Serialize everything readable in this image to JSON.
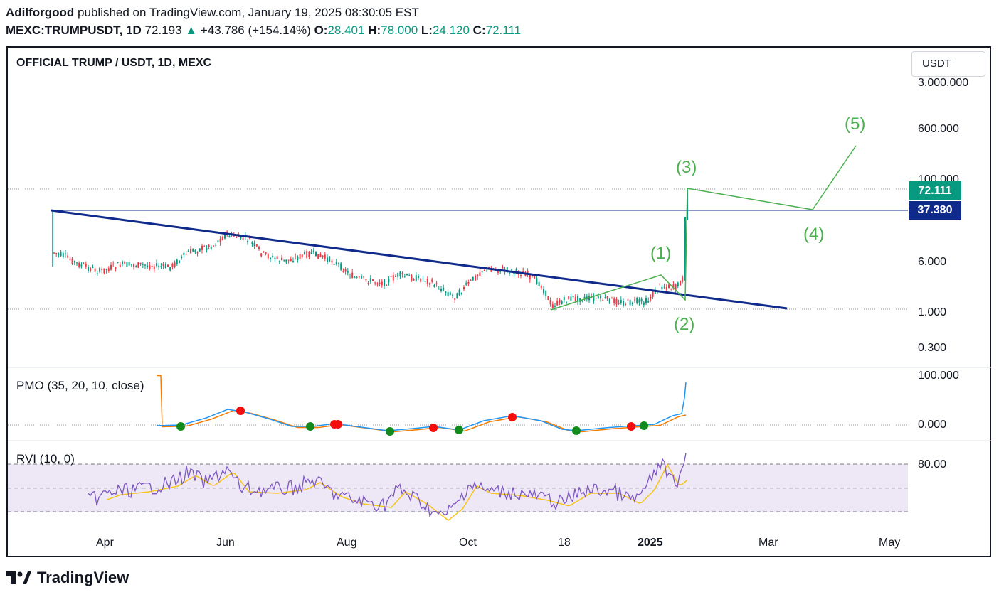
{
  "header": {
    "author": "Adilforgood",
    "published_text": "published on TradingView.com, January 19, 2025 08:30:05 EST",
    "symbol": "MEXC:TRUMPUSDT, 1D",
    "last": "72.193",
    "change": "+43.786 (+154.14%)",
    "open_label": "O:",
    "open": "28.401",
    "high_label": "H:",
    "high": "78.000",
    "low_label": "L:",
    "low": "24.120",
    "close_label": "C:",
    "close": "72.111"
  },
  "chart_title": "OFFICIAL TRUMP / USDT, 1D, MEXC",
  "unit_button": "USDT",
  "brand": "TradingView",
  "colors": {
    "up": "#089981",
    "down": "#f23645",
    "trendline": "#0f2a8a",
    "wave": "#4caf50",
    "pmo": "#2196f3",
    "pmo_signal": "#f57c00",
    "rvi": "#7e57c2",
    "rvi_signal": "#f5c518",
    "rvi_band": "#ede7f6"
  },
  "chart_data": {
    "type": "line",
    "price_axis": {
      "scale": "log",
      "ticks": [
        "3,000.000",
        "600.000",
        "100.000",
        "6.000",
        "1.000",
        "0.300"
      ],
      "last_price_label": "72.111",
      "level_label": "37.380"
    },
    "time_axis": [
      "Apr",
      "Jun",
      "Aug",
      "Oct",
      "18",
      "2025",
      "Mar",
      "May"
    ],
    "wave_labels": [
      "(1)",
      "(2)",
      "(3)",
      "(4)",
      "(5)"
    ],
    "pmo": {
      "title": "PMO (35, 20, 10, close)",
      "ticks": [
        "100.000",
        "0.000"
      ],
      "signals": [
        "buy",
        "sell",
        "buy",
        "sell",
        "sell",
        "buy",
        "sell",
        "buy",
        "sell",
        "buy",
        "sell",
        "buy"
      ]
    },
    "rvi": {
      "title": "RVI (10, 0)",
      "ticks": [
        "80.00"
      ]
    }
  }
}
